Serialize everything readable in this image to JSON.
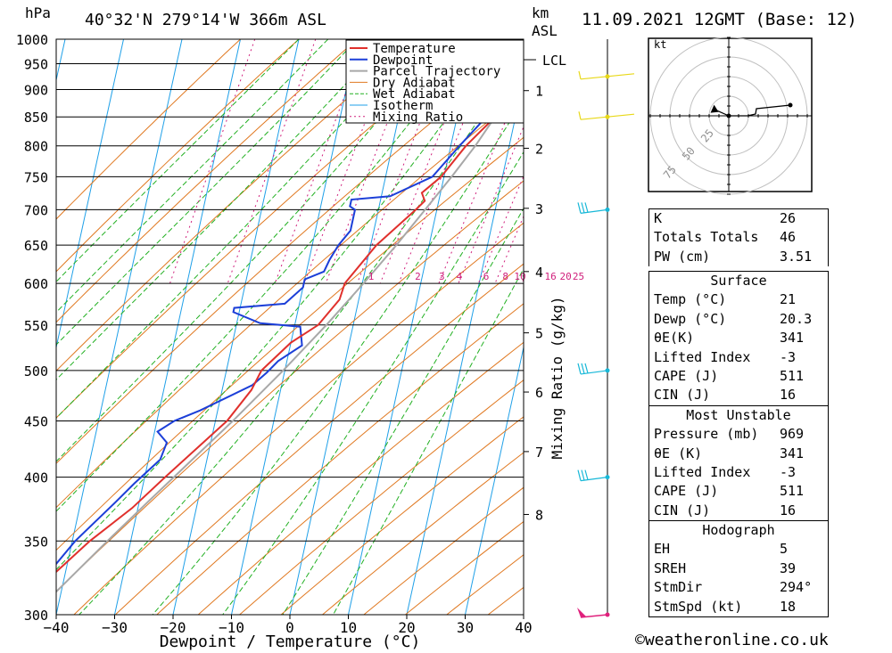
{
  "header": {
    "hpa": "hPa",
    "location": "40°32'N  279°14'W  366m  ASL",
    "km": "km",
    "asl": "ASL",
    "datetime": "11.09.2021  12GMT  (Base: 12)"
  },
  "legend": [
    "Temperature",
    "Dewpoint",
    "Parcel Trajectory",
    "Dry Adiabat",
    "Wet Adiabat",
    "Isotherm",
    "Mixing Ratio"
  ],
  "colors": {
    "temperature": "#e0302c",
    "dewpoint": "#1c3fd8",
    "parcel": "#a8a8a8",
    "dry_adiabat": "#e07820",
    "wet_adiabat": "#22b022",
    "isotherm": "#1fa0e8",
    "mixing_ratio": "#d0207c",
    "wind": "#18b8d8"
  },
  "chart_data": {
    "type": "skew-t",
    "xlabel": "Dewpoint / Temperature (°C)",
    "ylabel": "hPa",
    "right_label": "Mixing Ratio (g/kg)",
    "xlim": [
      -40,
      40
    ],
    "ylim": [
      1000,
      300
    ],
    "x_ticks": [
      "-40",
      "-30",
      "-20",
      "-10",
      "0",
      "10",
      "20",
      "30",
      "40"
    ],
    "pressure_ticks": [
      "300",
      "350",
      "400",
      "450",
      "500",
      "550",
      "600",
      "650",
      "700",
      "750",
      "800",
      "850",
      "900",
      "950",
      "1000"
    ],
    "km_ticks": [
      {
        "label": "8",
        "p": 370
      },
      {
        "label": "7",
        "p": 422
      },
      {
        "label": "6",
        "p": 478
      },
      {
        "label": "5",
        "p": 541
      },
      {
        "label": "4",
        "p": 615
      },
      {
        "label": "3",
        "p": 702
      },
      {
        "label": "2",
        "p": 796
      },
      {
        "label": "1",
        "p": 898
      }
    ],
    "lcl": {
      "label": "LCL",
      "p": 958
    },
    "mixing_ratio_labels": [
      {
        "label": "1",
        "t": 1.5
      },
      {
        "label": "2",
        "t": 9.5
      },
      {
        "label": "3",
        "t": 13.6
      },
      {
        "label": "4",
        "t": 16.6
      },
      {
        "label": "6",
        "t": 21.2
      },
      {
        "label": "8",
        "t": 24.5
      },
      {
        "label": "10",
        "t": 27.0
      },
      {
        "label": "16",
        "t": 32.2
      },
      {
        "label": "20",
        "t": 34.8
      },
      {
        "label": "25",
        "t": 37.0
      }
    ],
    "temperature": [
      [
        1000,
        22.6
      ],
      [
        969,
        21.0
      ],
      [
        950,
        23.5
      ],
      [
        930,
        23.5
      ],
      [
        900,
        20.0
      ],
      [
        850,
        16.5
      ],
      [
        800,
        12.6
      ],
      [
        750,
        9.5
      ],
      [
        725,
        6.8
      ],
      [
        713,
        7.6
      ],
      [
        700,
        6.4
      ],
      [
        650,
        1.0
      ],
      [
        600,
        -3.0
      ],
      [
        580,
        -3.3
      ],
      [
        550,
        -6.0
      ],
      [
        530,
        -10.0
      ],
      [
        500,
        -14.0
      ],
      [
        480,
        -15.0
      ],
      [
        450,
        -18.0
      ],
      [
        400,
        -26.5
      ],
      [
        375,
        -31.0
      ],
      [
        350,
        -37.0
      ],
      [
        300,
        -48.0
      ]
    ],
    "dewpoint": [
      [
        1000,
        22.0
      ],
      [
        969,
        20.3
      ],
      [
        950,
        16.0
      ],
      [
        935,
        16.0
      ],
      [
        920,
        18.0
      ],
      [
        900,
        19.0
      ],
      [
        850,
        15.0
      ],
      [
        800,
        11.5
      ],
      [
        750,
        8.0
      ],
      [
        720,
        1.5
      ],
      [
        715,
        -5.0
      ],
      [
        705,
        -5.0
      ],
      [
        700,
        -4.0
      ],
      [
        690,
        -4.0
      ],
      [
        670,
        -4.0
      ],
      [
        650,
        -5.5
      ],
      [
        630,
        -6.5
      ],
      [
        615,
        -7.0
      ],
      [
        605,
        -10.0
      ],
      [
        595,
        -10.0
      ],
      [
        575,
        -12.5
      ],
      [
        570,
        -21.0
      ],
      [
        565,
        -21.0
      ],
      [
        552,
        -16.0
      ],
      [
        548,
        -9.0
      ],
      [
        527,
        -8.0
      ],
      [
        510,
        -11.5
      ],
      [
        498,
        -13.0
      ],
      [
        485,
        -15.0
      ],
      [
        460,
        -23.0
      ],
      [
        450,
        -27.0
      ],
      [
        440,
        -29.5
      ],
      [
        430,
        -27.5
      ],
      [
        415,
        -28.0
      ],
      [
        395,
        -31.5
      ],
      [
        380,
        -34.0
      ],
      [
        350,
        -39.5
      ],
      [
        320,
        -44.0
      ],
      [
        300,
        -48.0
      ]
    ],
    "parcel": [
      [
        1000,
        22.6
      ],
      [
        969,
        21.0
      ],
      [
        950,
        20.2
      ],
      [
        900,
        18.5
      ],
      [
        850,
        16.5
      ],
      [
        800,
        14.2
      ],
      [
        750,
        11.3
      ],
      [
        700,
        8.0
      ],
      [
        650,
        4.4
      ],
      [
        600,
        0.2
      ],
      [
        550,
        -4.6
      ],
      [
        500,
        -10.3
      ],
      [
        450,
        -17.0
      ],
      [
        400,
        -25.0
      ],
      [
        380,
        -28.5
      ],
      [
        350,
        -34.0
      ],
      [
        320,
        -39.8
      ],
      [
        300,
        -44.0
      ]
    ],
    "winds": [
      {
        "p": 300,
        "kind": "pennant",
        "color": "#e0207c"
      },
      {
        "p": 400,
        "kind": "barbs",
        "color": "#18b8d8"
      },
      {
        "p": 500,
        "kind": "barbs",
        "color": "#18b8d8"
      },
      {
        "p": 700,
        "kind": "barbs",
        "color": "#18b8d8"
      },
      {
        "p": 850,
        "kind": "barb",
        "color": "#e8d818"
      },
      {
        "p": 925,
        "kind": "barb",
        "color": "#e8d818"
      }
    ],
    "hodograph": {
      "unit": "kt",
      "ring_labels": [
        "25",
        "50",
        "75"
      ],
      "storm_dir_deg": 294,
      "storm_speed_kt": 18
    }
  },
  "indices": [
    {
      "label": "K",
      "value": "26"
    },
    {
      "label": "Totals Totals",
      "value": "46"
    },
    {
      "label": "PW (cm)",
      "value": "3.51"
    }
  ],
  "surface": {
    "title": "Surface",
    "rows": [
      {
        "label": "Temp (°C)",
        "value": "21"
      },
      {
        "label": "Dewp (°C)",
        "value": "20.3"
      },
      {
        "label": "θE(K)",
        "value": "341"
      },
      {
        "label": "Lifted Index",
        "value": "-3"
      },
      {
        "label": "CAPE (J)",
        "value": "511"
      },
      {
        "label": "CIN (J)",
        "value": "16"
      }
    ]
  },
  "most_unstable": {
    "title": "Most Unstable",
    "rows": [
      {
        "label": "Pressure (mb)",
        "value": "969"
      },
      {
        "label": "θE (K)",
        "value": "341"
      },
      {
        "label": "Lifted Index",
        "value": "-3"
      },
      {
        "label": "CAPE (J)",
        "value": "511"
      },
      {
        "label": "CIN (J)",
        "value": "16"
      }
    ]
  },
  "hodograph_table": {
    "title": "Hodograph",
    "rows": [
      {
        "label": "EH",
        "value": "5"
      },
      {
        "label": "SREH",
        "value": "39"
      },
      {
        "label": "StmDir",
        "value": "294°"
      },
      {
        "label": "StmSpd (kt)",
        "value": "18"
      }
    ]
  },
  "footer": "©weatheronline.co.uk"
}
